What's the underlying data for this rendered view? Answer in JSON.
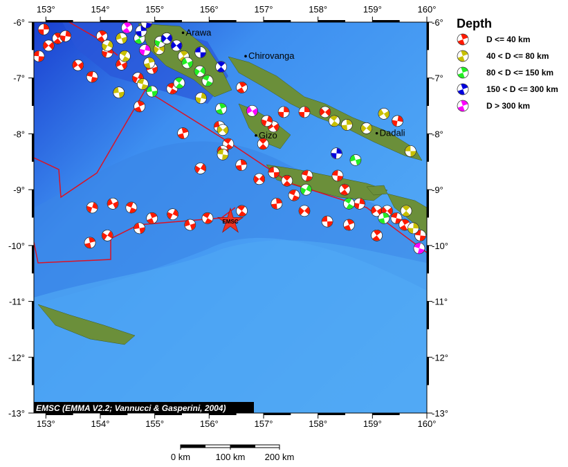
{
  "map": {
    "lon_range": [
      152.78,
      160.0
    ],
    "lat_range": [
      -13.0,
      -6.0
    ],
    "lon_ticks": [
      "153°",
      "154°",
      "155°",
      "156°",
      "157°",
      "158°",
      "159°",
      "160°"
    ],
    "lat_ticks": [
      "-6°",
      "-7°",
      "-8°",
      "-9°",
      "-10°",
      "-11°",
      "-12°",
      "-13°"
    ],
    "credit": "EMSC (EMMA V2.2; Vannucci & Gasperini, 2004)",
    "epicenter": {
      "label": "EMSC",
      "lon": 156.39,
      "lat": -9.57,
      "color": "#ee3322"
    },
    "places": [
      {
        "name": "Arawa",
        "lon": 155.52,
        "lat": -6.19
      },
      {
        "name": "Chirovanga",
        "lon": 156.67,
        "lat": -6.61
      },
      {
        "name": "Gizo",
        "lon": 156.86,
        "lat": -8.03
      },
      {
        "name": "Dadali",
        "lon": 159.08,
        "lat": -7.99
      }
    ]
  },
  "scale_bar": {
    "labels": [
      "0 km",
      "100 km",
      "200 km"
    ]
  },
  "legend": {
    "title": "Depth",
    "items": [
      {
        "label": "D <= 40 km",
        "color": "#ff1a00"
      },
      {
        "label": "40 < D <= 80 km",
        "color": "#c8c000"
      },
      {
        "label": "80 < D <= 150 km",
        "color": "#22ee22"
      },
      {
        "label": "150 < D <= 300 km",
        "color": "#0000dd"
      },
      {
        "label": "D > 300 km",
        "color": "#ff00ff"
      }
    ]
  },
  "events": [
    [
      152.96,
      -6.13,
      0
    ],
    [
      153.05,
      -6.42,
      0
    ],
    [
      152.87,
      -6.61,
      0
    ],
    [
      153.22,
      -6.29,
      0
    ],
    [
      153.36,
      -6.25,
      0
    ],
    [
      153.59,
      -6.77,
      0
    ],
    [
      153.85,
      -6.98,
      0
    ],
    [
      154.03,
      -6.25,
      0
    ],
    [
      154.13,
      -6.54,
      0
    ],
    [
      154.39,
      -6.76,
      0
    ],
    [
      154.34,
      -7.26,
      0
    ],
    [
      154.72,
      -7.51,
      0
    ],
    [
      154.69,
      -7.0,
      0
    ],
    [
      154.95,
      -6.83,
      0
    ],
    [
      155.32,
      -7.19,
      0
    ],
    [
      155.52,
      -7.99,
      0
    ],
    [
      155.84,
      -8.62,
      0
    ],
    [
      156.19,
      -7.87,
      0
    ],
    [
      156.35,
      -8.18,
      0
    ],
    [
      156.59,
      -8.56,
      0
    ],
    [
      156.92,
      -8.81,
      0
    ],
    [
      157.19,
      -8.69,
      0
    ],
    [
      157.43,
      -8.84,
      0
    ],
    [
      157.75,
      -7.61,
      0
    ],
    [
      158.13,
      -7.61,
      0
    ],
    [
      158.36,
      -8.75,
      0
    ],
    [
      158.49,
      -9.0,
      0
    ],
    [
      158.76,
      -9.25,
      0
    ],
    [
      159.08,
      -9.38,
      0
    ],
    [
      159.44,
      -9.51,
      0
    ],
    [
      159.59,
      -9.63,
      0
    ],
    [
      153.85,
      -9.32,
      0
    ],
    [
      154.23,
      -9.25,
      0
    ],
    [
      154.57,
      -9.32,
      0
    ],
    [
      154.95,
      -9.51,
      0
    ],
    [
      155.33,
      -9.44,
      0
    ],
    [
      155.65,
      -9.63,
      0
    ],
    [
      155.97,
      -9.51,
      0
    ],
    [
      153.81,
      -9.95,
      0
    ],
    [
      154.13,
      -9.82,
      0
    ],
    [
      154.72,
      -9.69,
      0
    ],
    [
      156.6,
      -9.38,
      0
    ],
    [
      157.24,
      -9.25,
      0
    ],
    [
      157.75,
      -9.38,
      0
    ],
    [
      158.17,
      -9.57,
      0
    ],
    [
      156.99,
      -8.18,
      0
    ],
    [
      157.37,
      -7.61,
      0
    ],
    [
      159.27,
      -9.38,
      0
    ],
    [
      159.88,
      -9.82,
      0
    ],
    [
      159.08,
      -9.82,
      0
    ],
    [
      159.46,
      -7.77,
      0
    ],
    [
      157.18,
      -7.87,
      0
    ],
    [
      157.8,
      -8.75,
      0
    ],
    [
      156.6,
      -7.17,
      0
    ],
    [
      157.06,
      -7.77,
      0
    ],
    [
      156.25,
      -8.31,
      0
    ],
    [
      157.56,
      -9.1,
      0
    ],
    [
      158.57,
      -9.63,
      0
    ],
    [
      154.13,
      -6.42,
      1
    ],
    [
      154.39,
      -6.29,
      1
    ],
    [
      154.45,
      -6.61,
      1
    ],
    [
      154.9,
      -6.73,
      1
    ],
    [
      155.08,
      -6.48,
      1
    ],
    [
      154.34,
      -7.26,
      1
    ],
    [
      158.3,
      -7.77,
      1
    ],
    [
      158.53,
      -7.84,
      1
    ],
    [
      158.89,
      -7.9,
      1
    ],
    [
      159.7,
      -8.31,
      1
    ],
    [
      159.62,
      -9.38,
      1
    ],
    [
      159.75,
      -9.69,
      1
    ],
    [
      156.25,
      -7.93,
      1
    ],
    [
      156.25,
      -8.37,
      1
    ],
    [
      155.53,
      -6.61,
      1
    ],
    [
      155.85,
      -7.36,
      1
    ],
    [
      159.21,
      -7.64,
      1
    ],
    [
      154.78,
      -7.11,
      1
    ],
    [
      154.72,
      -6.29,
      2
    ],
    [
      155.1,
      -6.35,
      2
    ],
    [
      155.6,
      -6.73,
      2
    ],
    [
      155.97,
      -7.05,
      2
    ],
    [
      156.22,
      -7.55,
      2
    ],
    [
      157.78,
      -9.0,
      2
    ],
    [
      158.69,
      -8.47,
      2
    ],
    [
      158.57,
      -9.25,
      2
    ],
    [
      159.21,
      -9.51,
      2
    ],
    [
      155.83,
      -6.88,
      2
    ],
    [
      154.95,
      -7.24,
      2
    ],
    [
      155.45,
      -7.09,
      2
    ],
    [
      154.75,
      -6.16,
      3
    ],
    [
      155.22,
      -6.29,
      3
    ],
    [
      155.84,
      -6.54,
      3
    ],
    [
      156.22,
      -6.8,
      3
    ],
    [
      158.34,
      -8.35,
      3
    ],
    [
      155.4,
      -6.42,
      3
    ],
    [
      154.85,
      -6.01,
      3
    ],
    [
      154.49,
      -6.1,
      4
    ],
    [
      154.82,
      -6.5,
      4
    ],
    [
      156.79,
      -7.59,
      4
    ],
    [
      159.86,
      -10.05,
      4
    ]
  ]
}
